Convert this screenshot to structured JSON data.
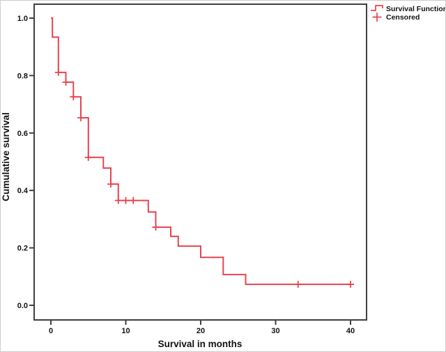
{
  "figure": {
    "kind": "kaplan-meier-plot",
    "colors": {
      "curve": "#e8434f",
      "frame": "#3f3f3f",
      "text": "#111111",
      "background": "#ffffff",
      "outer_border": "#cccccc"
    }
  },
  "legend": {
    "position": "top-right-outside",
    "items": [
      {
        "label": "Survival Function",
        "glyph": "step-line-icon",
        "color": "#e8434f"
      },
      {
        "label": "Censored",
        "glyph": "plus-icon",
        "color": "#e8434f"
      }
    ]
  },
  "chart_data": {
    "type": "line",
    "subtype": "kaplan-meier-step",
    "xlabel": "Survival in months",
    "ylabel": "Cumulative survival",
    "xlim": [
      0,
      40
    ],
    "ylim": [
      0.0,
      1.0
    ],
    "xticks": [
      0,
      10,
      20,
      30,
      40
    ],
    "yticks": [
      1.0,
      0.8,
      0.6,
      0.4,
      0.2,
      0.0
    ],
    "x_tick_labels": [
      "0",
      "10",
      "20",
      "30",
      "40"
    ],
    "y_tick_labels": [
      "1.0",
      "0.8",
      "0.6",
      "0.4",
      "0.2",
      "0.0"
    ],
    "grid": false,
    "series": [
      {
        "name": "Survival Function",
        "style": "step-post",
        "color": "#e8434f",
        "points": [
          [
            0,
            1.0
          ],
          [
            0.2,
            0.934
          ],
          [
            1,
            0.811
          ],
          [
            2,
            0.777
          ],
          [
            3,
            0.726
          ],
          [
            4,
            0.653
          ],
          [
            5,
            0.515
          ],
          [
            7,
            0.478
          ],
          [
            8,
            0.422
          ],
          [
            9,
            0.365
          ],
          [
            13,
            0.325
          ],
          [
            14,
            0.272
          ],
          [
            16,
            0.24
          ],
          [
            17,
            0.206
          ],
          [
            20,
            0.167
          ],
          [
            23,
            0.107
          ],
          [
            26,
            0.073
          ],
          [
            40,
            0.073
          ]
        ]
      }
    ],
    "censored": {
      "name": "Censored",
      "marker": "plus",
      "color": "#e8434f",
      "points": [
        [
          1,
          0.811
        ],
        [
          2,
          0.777
        ],
        [
          3,
          0.726
        ],
        [
          4,
          0.653
        ],
        [
          5,
          0.515
        ],
        [
          8,
          0.422
        ],
        [
          9,
          0.365
        ],
        [
          10,
          0.365
        ],
        [
          11,
          0.365
        ],
        [
          14,
          0.272
        ],
        [
          33,
          0.073
        ],
        [
          40,
          0.073
        ]
      ]
    }
  }
}
